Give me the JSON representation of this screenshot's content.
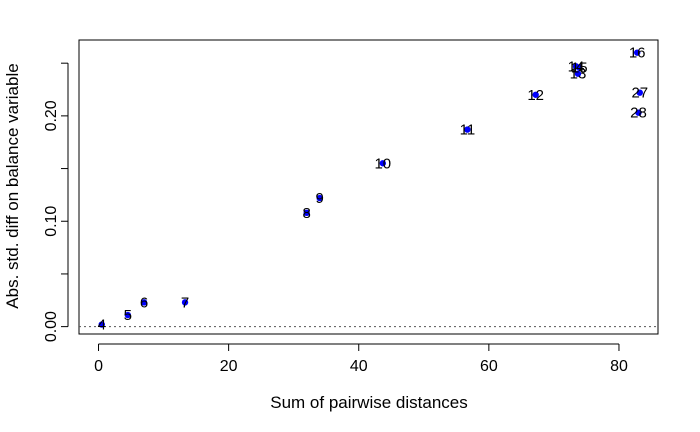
{
  "chart_data": {
    "type": "scatter",
    "xlabel": "Sum of pairwise distances",
    "ylabel": "Abs. std. diff on balance variable",
    "xlim": [
      -3,
      86
    ],
    "ylim": [
      -0.007,
      0.272
    ],
    "x_ticks": [
      0,
      20,
      40,
      60,
      80
    ],
    "y_ticks": [
      0.0,
      0.1,
      0.2
    ],
    "x_tick_labels": [
      "0",
      "20",
      "40",
      "60",
      "80"
    ],
    "y_tick_labels": [
      "0.00",
      "0.10",
      "0.20"
    ],
    "reference_line": {
      "y": 0,
      "style": "dotted"
    },
    "point_color": "#0000ff",
    "label_color": "#000000",
    "points": [
      {
        "label": "4",
        "x": 0.5,
        "y": 0.002
      },
      {
        "label": "5",
        "x": 4.5,
        "y": 0.011
      },
      {
        "label": "6",
        "x": 7.0,
        "y": 0.023
      },
      {
        "label": "7",
        "x": 13.3,
        "y": 0.023
      },
      {
        "label": "8",
        "x": 32.0,
        "y": 0.108
      },
      {
        "label": "9",
        "x": 34.0,
        "y": 0.122
      },
      {
        "label": "10",
        "x": 43.7,
        "y": 0.155
      },
      {
        "label": "11",
        "x": 56.7,
        "y": 0.187
      },
      {
        "label": "12",
        "x": 67.2,
        "y": 0.22
      },
      {
        "label": "13",
        "x": 73.7,
        "y": 0.24
      },
      {
        "label": "14",
        "x": 73.4,
        "y": 0.247
      },
      {
        "label": "15",
        "x": 73.9,
        "y": 0.246
      },
      {
        "label": "16",
        "x": 82.8,
        "y": 0.26
      },
      {
        "label": "27",
        "x": 83.2,
        "y": 0.222
      },
      {
        "label": "28",
        "x": 83.0,
        "y": 0.203
      }
    ]
  }
}
